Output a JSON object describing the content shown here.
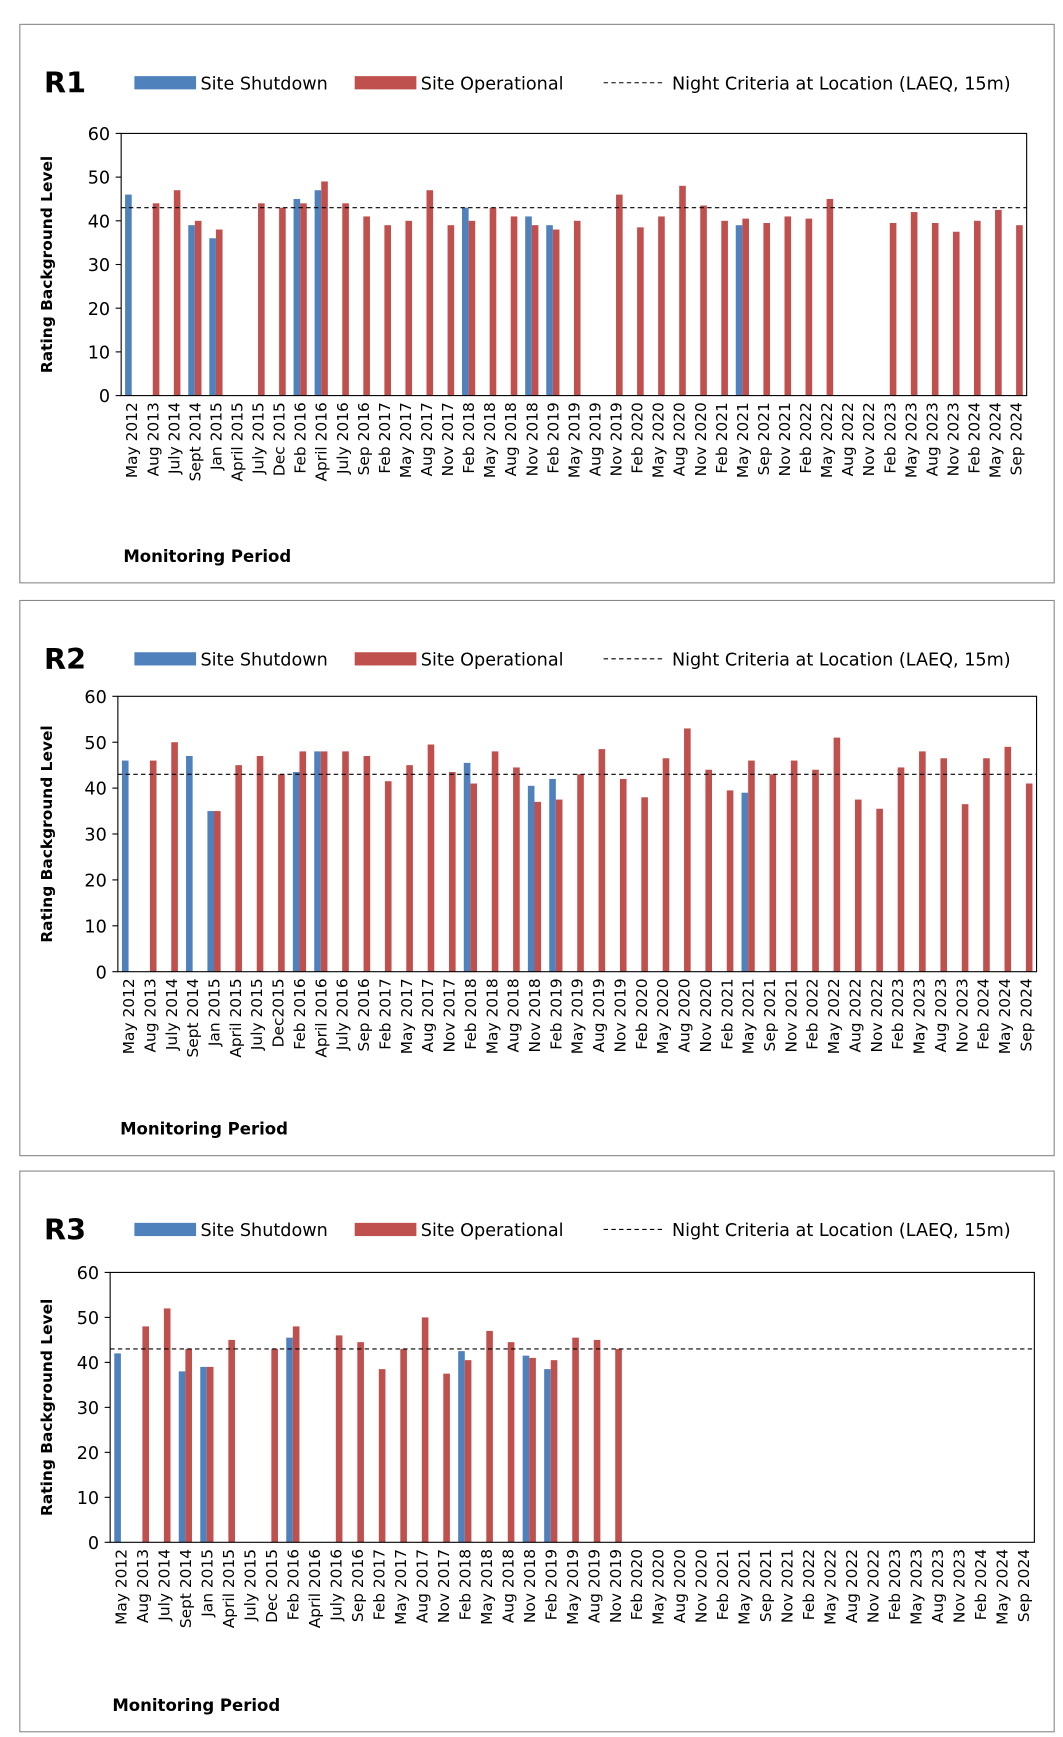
{
  "chart_data": [
    {
      "type": "bar",
      "title": "R1",
      "x_label": "Monitoring Period",
      "y_label": "Rating Background Level",
      "categories": [
        "May 2012",
        "Aug 2013",
        "July 2014",
        "Sept 2014",
        "Jan 2015",
        "April 2015",
        "July 2015",
        "Dec 2015",
        "Feb 2016",
        "April 2016",
        "July 2016",
        "Sep 2016",
        "Feb 2017",
        "May 2017",
        "Aug 2017",
        "Nov 2017",
        "Feb 2018",
        "May 2018",
        "Aug 2018",
        "Nov 2018",
        "Feb 2019",
        "May 2019",
        "Aug 2019",
        "Nov 2019",
        "Feb 2020",
        "May 2020",
        "Aug 2020",
        "Nov 2020",
        "Feb 2021",
        "May 2021",
        "Sep 2021",
        "Nov 2021",
        "Feb 2022",
        "May 2022",
        "Aug 2022",
        "Nov 2022",
        "Feb 2023",
        "May 2023",
        "Aug 2023",
        "Nov 2023",
        "Feb 2024",
        "May 2024",
        "Sep 2024"
      ],
      "series": [
        {
          "name": "Site Shutdown",
          "color": "#4f81bd",
          "values": [
            46,
            null,
            null,
            39,
            36,
            null,
            null,
            null,
            45,
            47,
            null,
            null,
            null,
            null,
            null,
            null,
            43,
            null,
            null,
            41,
            39,
            null,
            null,
            null,
            null,
            null,
            null,
            null,
            null,
            39,
            null,
            null,
            null,
            null,
            null,
            null,
            null,
            null,
            null,
            null,
            null,
            null,
            null
          ]
        },
        {
          "name": "Site Operational",
          "color": "#c0504d",
          "values": [
            null,
            44,
            47,
            40,
            38,
            null,
            44,
            43,
            44,
            49,
            44,
            41,
            39,
            40,
            47,
            39,
            40,
            43,
            41,
            39,
            38,
            40,
            null,
            46,
            38.5,
            41,
            48,
            43.5,
            40,
            40.5,
            39.5,
            41,
            40.5,
            45,
            null,
            null,
            39.5,
            42,
            39.5,
            37.5,
            40,
            42.5,
            39
          ]
        }
      ],
      "reference": {
        "name": "Night Criteria at Location (LAEQ, 15m)",
        "value": 43
      },
      "ylim": [
        0,
        60
      ],
      "yticks": [
        0,
        10,
        20,
        30,
        40,
        50,
        60
      ]
    },
    {
      "type": "bar",
      "title": "R2",
      "x_label": "Monitoring Period",
      "y_label": "Rating Background Level",
      "categories": [
        "May 2012",
        "Aug 2013",
        "July 2014",
        "Sept 2014",
        "Jan 2015",
        "April 2015",
        "July 2015",
        "Dec2015",
        "Feb 2016",
        "April 2016",
        "July 2016",
        "Sep 2016",
        "Feb 2017",
        "May 2017",
        "Aug 2017",
        "Nov 2017",
        "Feb 2018",
        "May 2018",
        "Aug 2018",
        "Nov 2018",
        "Feb 2019",
        "May 2019",
        "Aug 2019",
        "Nov 2019",
        "Feb 2020",
        "May 2020",
        "Aug 2020",
        "Nov 2020",
        "Feb 2021",
        "May 2021",
        "Sep 2021",
        "Nov 2021",
        "Feb 2022",
        "May 2022",
        "Aug 2022",
        "Nov 2022",
        "Feb 2023",
        "May 2023",
        "Aug 2023",
        "Nov 2023",
        "Feb 2024",
        "May 2024",
        "Sep 2024"
      ],
      "series": [
        {
          "name": "Site Shutdown",
          "color": "#4f81bd",
          "values": [
            46,
            null,
            null,
            47,
            35,
            null,
            null,
            null,
            43.5,
            48,
            null,
            null,
            null,
            null,
            null,
            null,
            45.5,
            null,
            null,
            40.5,
            42,
            null,
            null,
            null,
            null,
            null,
            null,
            null,
            null,
            39,
            null,
            null,
            null,
            null,
            null,
            null,
            null,
            null,
            null,
            null,
            null,
            null,
            null
          ]
        },
        {
          "name": "Site Operational",
          "color": "#c0504d",
          "values": [
            null,
            46,
            50,
            null,
            35,
            45,
            47,
            43,
            48,
            48,
            48,
            47,
            41.5,
            45,
            49.5,
            43.5,
            41,
            48,
            44.5,
            37,
            37.5,
            43,
            48.5,
            42,
            38,
            46.5,
            53,
            44,
            39.5,
            46,
            43,
            46,
            44,
            51,
            37.5,
            35.5,
            44.5,
            48,
            46.5,
            36.5,
            46.5,
            49,
            41
          ]
        }
      ],
      "reference": {
        "name": "Night Criteria at Location (LAEQ, 15m)",
        "value": 43
      },
      "ylim": [
        0,
        60
      ],
      "yticks": [
        0,
        10,
        20,
        30,
        40,
        50,
        60
      ]
    },
    {
      "type": "bar",
      "title": "R3",
      "x_label": "Monitoring Period",
      "y_label": "Rating Background Level",
      "categories": [
        "May 2012",
        "Aug 2013",
        "July 2014",
        "Sept 2014",
        "Jan 2015",
        "April 2015",
        "July 2015",
        "Dec 2015",
        "Feb 2016",
        "April 2016",
        "July 2016",
        "Sep 2016",
        "Feb 2017",
        "May 2017",
        "Aug 2017",
        "Nov 2017",
        "Feb 2018",
        "May 2018",
        "Aug 2018",
        "Nov 2018",
        "Feb 2019",
        "May 2019",
        "Aug 2019",
        "Nov 2019",
        "Feb 2020",
        "May 2020",
        "Aug 2020",
        "Nov 2020",
        "Feb 2021",
        "May 2021",
        "Sep 2021",
        "Nov 2021",
        "Feb 2022",
        "May 2022",
        "Aug 2022",
        "Nov 2022",
        "Feb 2023",
        "May 2023",
        "Aug 2023",
        "Nov 2023",
        "Feb 2024",
        "May 2024",
        "Sep 2024"
      ],
      "series": [
        {
          "name": "Site Shutdown",
          "color": "#4f81bd",
          "values": [
            42,
            null,
            null,
            38,
            39,
            null,
            null,
            null,
            45.5,
            null,
            null,
            null,
            null,
            null,
            null,
            null,
            42.5,
            null,
            null,
            41.5,
            38.5,
            null,
            null,
            null,
            null,
            null,
            null,
            null,
            null,
            null,
            null,
            null,
            null,
            null,
            null,
            null,
            null,
            null,
            null,
            null,
            null,
            null,
            null
          ]
        },
        {
          "name": "Site Operational",
          "color": "#c0504d",
          "values": [
            null,
            48,
            52,
            43,
            39,
            45,
            null,
            43,
            48,
            null,
            46,
            44.5,
            38.5,
            43,
            50,
            37.5,
            40.5,
            47,
            44.5,
            41,
            40.5,
            45.5,
            45,
            43,
            null,
            null,
            null,
            null,
            null,
            null,
            null,
            null,
            null,
            null,
            null,
            null,
            null,
            null,
            null,
            null,
            null,
            null,
            null
          ]
        }
      ],
      "reference": {
        "name": "Night Criteria at Location (LAEQ, 15m)",
        "value": 43
      },
      "ylim": [
        0,
        60
      ],
      "yticks": [
        0,
        10,
        20,
        30,
        40,
        50,
        60
      ]
    }
  ]
}
